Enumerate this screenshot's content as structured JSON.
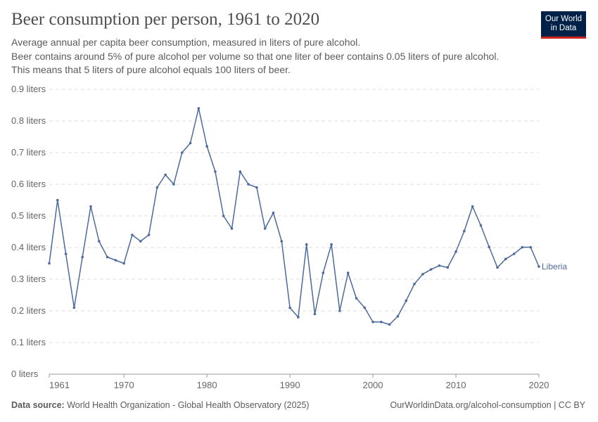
{
  "header": {
    "title": "Beer consumption per person, 1961 to 2020",
    "subtitle_line1": "Average annual per capita beer consumption, measured in liters of pure alcohol.",
    "subtitle_line2": "Beer contains around 5% of pure alcohol per volume so that one liter of beer contains 0.05 liters of pure alcohol. This means that 5 liters of pure alcohol equals 100 liters of beer."
  },
  "logo": {
    "line1": "Our World",
    "line2": "in Data",
    "background": "#002147",
    "accent": "#ce261e"
  },
  "footer": {
    "source_label": "Data source:",
    "source_text": "World Health Organization - Global Health Observatory (2025)",
    "right_text": "OurWorldinData.org/alcohol-consumption | CC BY"
  },
  "chart_data": {
    "type": "line",
    "title": "Beer consumption per person, 1961 to 2020",
    "xlabel": "",
    "ylabel": "",
    "xlim": [
      1961,
      2020
    ],
    "ylim": [
      0,
      0.9
    ],
    "y_ticks": [
      0,
      0.1,
      0.2,
      0.3,
      0.4,
      0.5,
      0.6,
      0.7,
      0.8,
      0.9
    ],
    "y_tick_labels": [
      "0 liters",
      "0.1 liters",
      "0.2 liters",
      "0.3 liters",
      "0.4 liters",
      "0.5 liters",
      "0.6 liters",
      "0.7 liters",
      "0.8 liters",
      "0.9 liters"
    ],
    "x_ticks": [
      1961,
      1970,
      1980,
      1990,
      2000,
      2010,
      2020
    ],
    "x_tick_labels": [
      "1961",
      "1970",
      "1980",
      "1990",
      "2000",
      "2010",
      "2020"
    ],
    "grid": "horizontal dashed",
    "legend": "inline label at line end",
    "series": [
      {
        "name": "Liberia",
        "color": "#4c6a9c",
        "x": [
          1961,
          1962,
          1963,
          1964,
          1965,
          1966,
          1967,
          1968,
          1969,
          1970,
          1971,
          1972,
          1973,
          1974,
          1975,
          1976,
          1977,
          1978,
          1979,
          1980,
          1981,
          1982,
          1983,
          1984,
          1985,
          1986,
          1987,
          1988,
          1989,
          1990,
          1991,
          1992,
          1993,
          1994,
          1995,
          1996,
          1997,
          1998,
          1999,
          2000,
          2001,
          2002,
          2003,
          2004,
          2005,
          2006,
          2007,
          2008,
          2009,
          2010,
          2011,
          2012,
          2013,
          2014,
          2015,
          2016,
          2017,
          2018,
          2019,
          2020
        ],
        "values": [
          0.35,
          0.55,
          0.38,
          0.21,
          0.37,
          0.53,
          0.42,
          0.37,
          0.36,
          0.35,
          0.44,
          0.42,
          0.44,
          0.59,
          0.63,
          0.6,
          0.7,
          0.73,
          0.84,
          0.72,
          0.64,
          0.5,
          0.46,
          0.64,
          0.6,
          0.59,
          0.46,
          0.51,
          0.42,
          0.21,
          0.18,
          0.41,
          0.19,
          0.32,
          0.41,
          0.2,
          0.32,
          0.24,
          0.21,
          0.165,
          0.165,
          0.157,
          0.183,
          0.232,
          0.285,
          0.316,
          0.331,
          0.343,
          0.337,
          0.387,
          0.452,
          0.53,
          0.47,
          0.402,
          0.337,
          0.364,
          0.38,
          0.401,
          0.401,
          0.34
        ]
      }
    ]
  }
}
